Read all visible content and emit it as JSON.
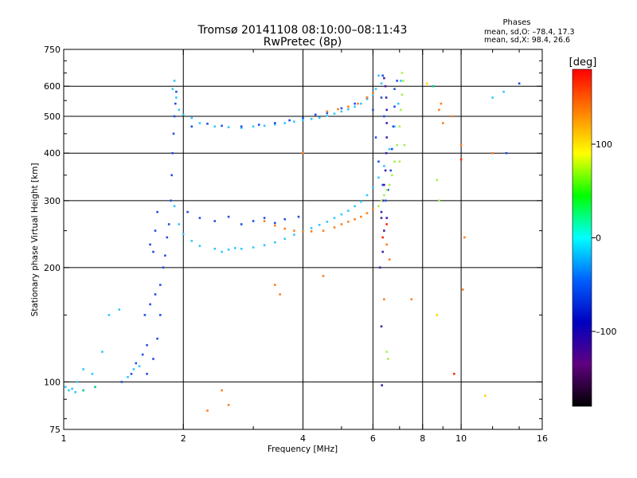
{
  "chart_data": {
    "type": "scatter",
    "title": "Tromsø 20141108 08:10:00–08:11:43",
    "subtitle": "RwPretec (8p)",
    "stats": {
      "heading": "Phases",
      "line_o": "mean, sd,O: –78.4, 17.3",
      "line_x": "mean, sd,X:  98.4, 26.6"
    },
    "xlabel": "Frequency [MHz]",
    "ylabel": "Stationary phase Virtual Height [km]",
    "x_scale": "log",
    "y_scale": "log",
    "xlim": [
      1,
      16
    ],
    "ylim": [
      75,
      750
    ],
    "x_ticks": [
      1,
      2,
      4,
      6,
      8,
      10,
      16
    ],
    "x_minor_ticks": [
      3,
      5,
      7,
      9,
      12,
      14
    ],
    "x_tick_labels": [
      "1",
      "2",
      "4",
      "6",
      "8",
      "10",
      "16"
    ],
    "y_ticks": [
      75,
      100,
      200,
      300,
      400,
      500,
      600,
      750
    ],
    "y_minor_ticks": [
      80,
      90,
      150,
      250,
      350,
      450,
      550,
      650,
      700
    ],
    "y_tick_labels": [
      "75",
      "100",
      "200",
      "300",
      "400",
      "500",
      "600",
      "750"
    ],
    "grid": true,
    "gridlines_x": [
      2,
      4,
      6,
      8,
      10
    ],
    "gridlines_y": [
      100,
      200,
      300,
      400,
      500,
      600
    ],
    "colorbar": {
      "label": "[deg]",
      "range": [
        -180,
        180
      ],
      "ticks": [
        100,
        0,
        -100
      ],
      "tick_labels": [
        "100",
        "0",
        "–100"
      ],
      "colors": [
        "#ff0000",
        "#ff8000",
        "#ffff00",
        "#00ff00",
        "#00ffff",
        "#0060ff",
        "#0000c0",
        "#600080",
        "#000000"
      ]
    },
    "series": [
      {
        "color": "#30c8ff",
        "points": [
          [
            1.01,
            97
          ],
          [
            1.03,
            95
          ],
          [
            1.05,
            96
          ],
          [
            1.07,
            94
          ],
          [
            1.08,
            100
          ],
          [
            1.12,
            108
          ],
          [
            1.18,
            105
          ],
          [
            1.25,
            120
          ],
          [
            1.3,
            150
          ],
          [
            1.38,
            155
          ],
          [
            1.45,
            103
          ],
          [
            1.5,
            108
          ],
          [
            1.55,
            110
          ],
          [
            1.9,
            620
          ],
          [
            1.88,
            590
          ],
          [
            1.92,
            560
          ],
          [
            1.95,
            520
          ],
          [
            2.0,
            505
          ],
          [
            2.1,
            495
          ],
          [
            2.2,
            480
          ],
          [
            2.4,
            470
          ],
          [
            2.6,
            468
          ],
          [
            2.8,
            466
          ],
          [
            3.0,
            470
          ],
          [
            3.2,
            472
          ],
          [
            3.4,
            476
          ],
          [
            3.6,
            480
          ],
          [
            3.8,
            484
          ],
          [
            4.0,
            488
          ],
          [
            4.2,
            492
          ],
          [
            4.4,
            496
          ],
          [
            4.6,
            502
          ],
          [
            4.8,
            508
          ],
          [
            5.0,
            515
          ],
          [
            5.2,
            522
          ],
          [
            5.4,
            530
          ],
          [
            5.6,
            540
          ],
          [
            5.8,
            555
          ],
          [
            6.0,
            570
          ],
          [
            6.1,
            590
          ],
          [
            6.2,
            640
          ],
          [
            6.3,
            610
          ],
          [
            1.9,
            290
          ],
          [
            1.95,
            260
          ],
          [
            2.0,
            245
          ],
          [
            2.1,
            235
          ],
          [
            2.2,
            228
          ],
          [
            2.4,
            224
          ],
          [
            2.6,
            223
          ],
          [
            2.8,
            224
          ],
          [
            3.0,
            226
          ],
          [
            3.2,
            229
          ],
          [
            3.4,
            233
          ],
          [
            3.6,
            238
          ],
          [
            3.8,
            244
          ],
          [
            4.0,
            250
          ],
          [
            4.2,
            254
          ],
          [
            4.4,
            259
          ],
          [
            4.6,
            264
          ],
          [
            4.8,
            270
          ],
          [
            5.0,
            276
          ],
          [
            5.2,
            282
          ],
          [
            5.4,
            290
          ],
          [
            5.6,
            298
          ],
          [
            5.8,
            310
          ],
          [
            6.0,
            325
          ],
          [
            6.2,
            345
          ],
          [
            6.4,
            370
          ],
          [
            6.6,
            410
          ],
          [
            6.8,
            470
          ],
          [
            6.95,
            540
          ],
          [
            7.05,
            620
          ],
          [
            12.0,
            560
          ],
          [
            12.8,
            580
          ],
          [
            2.5,
            220
          ],
          [
            2.7,
            225
          ]
        ]
      },
      {
        "color": "#1e50e6",
        "points": [
          [
            1.4,
            100
          ],
          [
            1.48,
            105
          ],
          [
            1.52,
            112
          ],
          [
            1.58,
            118
          ],
          [
            1.62,
            125
          ],
          [
            1.6,
            150
          ],
          [
            1.65,
            160
          ],
          [
            1.7,
            170
          ],
          [
            1.75,
            180
          ],
          [
            1.78,
            200
          ],
          [
            1.8,
            215
          ],
          [
            1.82,
            240
          ],
          [
            1.84,
            260
          ],
          [
            1.86,
            300
          ],
          [
            1.87,
            350
          ],
          [
            1.88,
            400
          ],
          [
            1.89,
            450
          ],
          [
            1.9,
            500
          ],
          [
            1.91,
            540
          ],
          [
            1.92,
            580
          ],
          [
            1.75,
            150
          ],
          [
            1.72,
            130
          ],
          [
            1.68,
            115
          ],
          [
            1.62,
            105
          ],
          [
            1.7,
            250
          ],
          [
            1.72,
            280
          ],
          [
            1.65,
            230
          ],
          [
            1.68,
            220
          ],
          [
            2.05,
            280
          ],
          [
            2.2,
            270
          ],
          [
            2.4,
            265
          ],
          [
            2.6,
            272
          ],
          [
            2.8,
            260
          ],
          [
            3.0,
            265
          ],
          [
            3.2,
            270
          ],
          [
            3.4,
            262
          ],
          [
            3.6,
            268
          ],
          [
            3.9,
            272
          ],
          [
            2.1,
            470
          ],
          [
            2.3,
            478
          ],
          [
            2.5,
            472
          ],
          [
            2.8,
            470
          ],
          [
            3.1,
            475
          ],
          [
            3.4,
            480
          ],
          [
            3.7,
            488
          ],
          [
            4.0,
            495
          ],
          [
            4.3,
            505
          ],
          [
            4.6,
            510
          ],
          [
            5.0,
            525
          ],
          [
            5.4,
            540
          ],
          [
            5.8,
            560
          ],
          [
            6.0,
            520
          ],
          [
            6.1,
            440
          ],
          [
            6.2,
            380
          ],
          [
            6.35,
            330
          ],
          [
            6.45,
            300
          ],
          [
            6.55,
            320
          ],
          [
            6.65,
            360
          ],
          [
            6.7,
            410
          ],
          [
            6.75,
            470
          ],
          [
            6.8,
            530
          ],
          [
            6.8,
            590
          ],
          [
            6.9,
            620
          ],
          [
            13.0,
            400
          ],
          [
            14.0,
            610
          ],
          [
            6.35,
            640
          ],
          [
            6.3,
            560
          ],
          [
            6.4,
            500
          ]
        ]
      },
      {
        "color": "#4020b0",
        "points": [
          [
            6.4,
            630
          ],
          [
            6.45,
            600
          ],
          [
            6.48,
            560
          ],
          [
            6.5,
            520
          ],
          [
            6.5,
            480
          ],
          [
            6.5,
            440
          ],
          [
            6.48,
            400
          ],
          [
            6.45,
            360
          ],
          [
            6.4,
            330
          ],
          [
            6.35,
            300
          ],
          [
            6.3,
            280
          ],
          [
            6.4,
            250
          ],
          [
            6.35,
            220
          ],
          [
            6.3,
            270
          ],
          [
            6.25,
            200
          ],
          [
            6.3,
            140
          ],
          [
            6.32,
            98
          ],
          [
            6.5,
            270
          ]
        ]
      },
      {
        "color": "#a8f050",
        "points": [
          [
            6.2,
            290
          ],
          [
            6.3,
            300
          ],
          [
            6.4,
            310
          ],
          [
            6.5,
            320
          ],
          [
            6.6,
            330
          ],
          [
            6.7,
            350
          ],
          [
            6.8,
            380
          ],
          [
            6.9,
            420
          ],
          [
            7.0,
            470
          ],
          [
            7.05,
            520
          ],
          [
            7.1,
            570
          ],
          [
            7.15,
            620
          ],
          [
            7.1,
            650
          ],
          [
            6.5,
            120
          ],
          [
            6.55,
            115
          ],
          [
            8.7,
            340
          ],
          [
            8.8,
            300
          ],
          [
            7.2,
            420
          ],
          [
            7.0,
            380
          ]
        ]
      },
      {
        "color": "#ff7f1e",
        "points": [
          [
            3.2,
            265
          ],
          [
            3.4,
            258
          ],
          [
            3.6,
            253
          ],
          [
            3.8,
            250
          ],
          [
            4.0,
            249
          ],
          [
            4.2,
            249
          ],
          [
            4.5,
            250
          ],
          [
            4.8,
            255
          ],
          [
            5.0,
            260
          ],
          [
            5.2,
            264
          ],
          [
            5.4,
            268
          ],
          [
            5.6,
            272
          ],
          [
            5.8,
            278
          ],
          [
            6.0,
            285
          ],
          [
            4.6,
            515
          ],
          [
            4.9,
            522
          ],
          [
            5.2,
            530
          ],
          [
            5.5,
            540
          ],
          [
            5.8,
            560
          ],
          [
            6.0,
            575
          ],
          [
            2.3,
            84
          ],
          [
            2.5,
            95
          ],
          [
            2.6,
            87
          ],
          [
            3.4,
            180
          ],
          [
            3.5,
            170
          ],
          [
            4.0,
            400
          ],
          [
            4.5,
            190
          ],
          [
            6.4,
            165
          ],
          [
            6.5,
            230
          ],
          [
            7.5,
            165
          ],
          [
            8.8,
            520
          ],
          [
            9.0,
            480
          ],
          [
            10.0,
            420
          ],
          [
            10.1,
            175
          ],
          [
            10.2,
            240
          ],
          [
            12.0,
            400
          ],
          [
            8.9,
            540
          ],
          [
            9.5,
            500
          ],
          [
            6.6,
            210
          ]
        ]
      },
      {
        "color": "#ff2a00",
        "points": [
          [
            6.35,
            240
          ],
          [
            9.6,
            105
          ],
          [
            10.0,
            385
          ],
          [
            6.5,
            260
          ]
        ]
      },
      {
        "color": "#00c896",
        "points": [
          [
            1.12,
            95
          ],
          [
            1.2,
            97
          ],
          [
            8.5,
            600
          ]
        ]
      },
      {
        "color": "#ffd700",
        "points": [
          [
            8.2,
            610
          ],
          [
            11.5,
            92
          ],
          [
            8.7,
            150
          ]
        ]
      }
    ]
  }
}
